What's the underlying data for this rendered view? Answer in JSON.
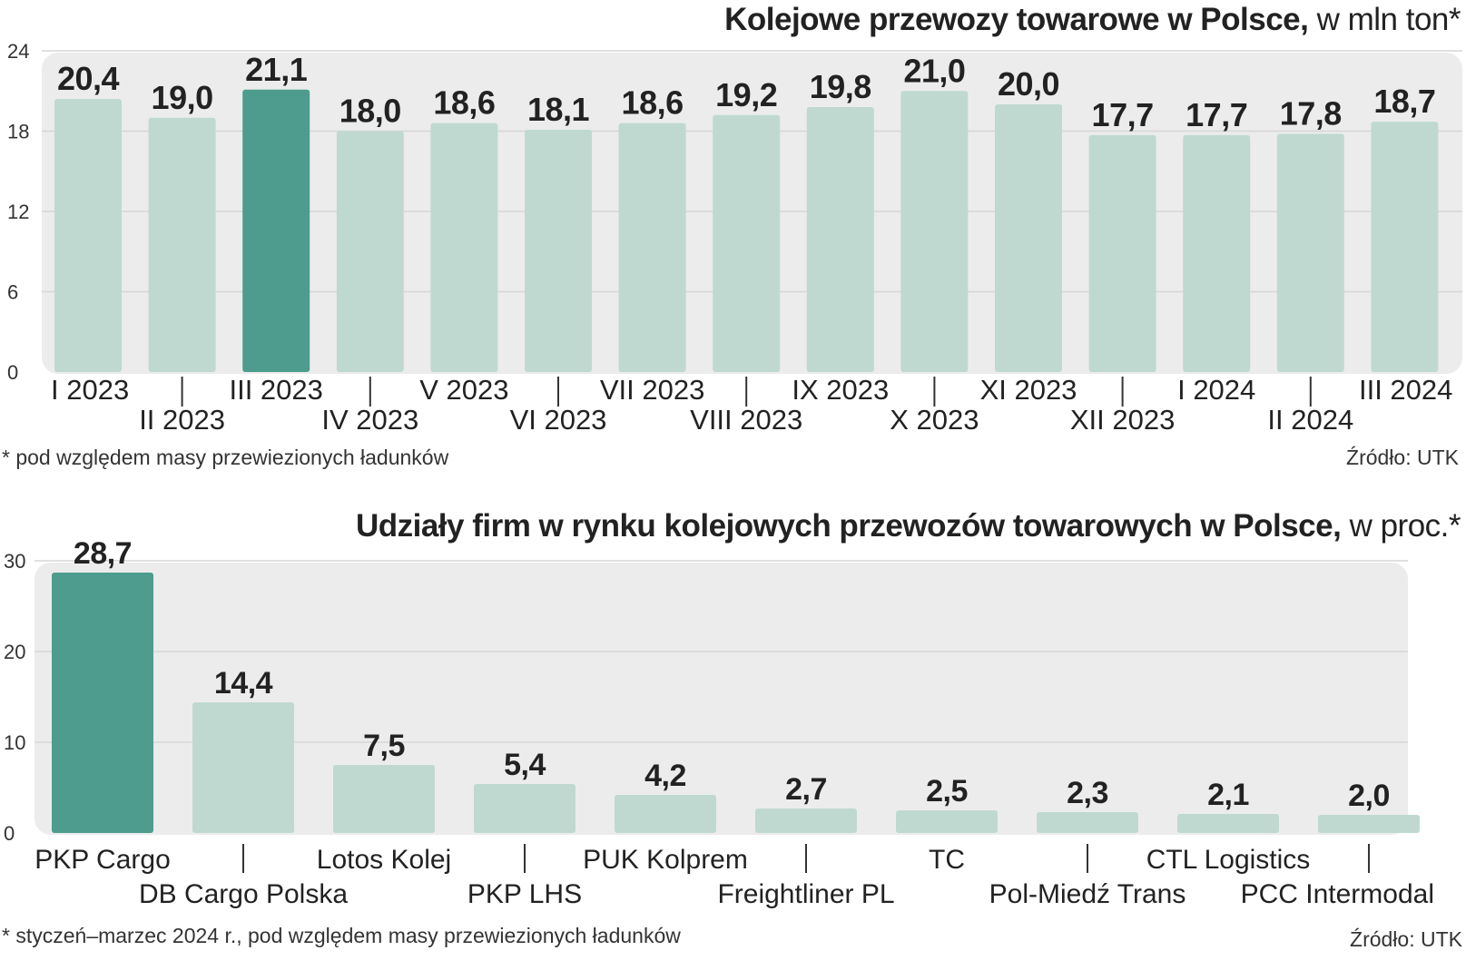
{
  "charts": [
    {
      "title_bold": "Kolejowe przewozy towarowe w Polsce,",
      "title_unit": " w mln ton*",
      "footnote": "* pod względem masy przewiezionych ładunków",
      "source": "Źródło: UTK"
    },
    {
      "title_bold": "Udziały firm w rynku kolejowych przewozów towarowych w Polsce,",
      "title_unit": " w proc.*",
      "footnote": "* styczeń–marzec 2024 r., pod względem masy przewiezionych ładunków",
      "source": "Źródło: UTK"
    }
  ],
  "colors": {
    "bar": "#bfd9d1",
    "highlight": "#4e9c8d",
    "panel": "#ececec",
    "grid": "#d6d6d6",
    "text": "#222222"
  },
  "chart_data": [
    {
      "type": "bar",
      "title": "Kolejowe przewozy towarowe w Polsce, w mln ton*",
      "categories": [
        "I 2023",
        "II 2023",
        "III 2023",
        "IV 2023",
        "V 2023",
        "VI 2023",
        "VII 2023",
        "VIII 2023",
        "IX 2023",
        "X 2023",
        "XI 2023",
        "XII 2023",
        "I 2024",
        "II 2024",
        "III 2024"
      ],
      "values": [
        20.4,
        19.0,
        21.1,
        18.0,
        18.6,
        18.1,
        18.6,
        19.2,
        19.8,
        21.0,
        20.0,
        17.7,
        17.7,
        17.8,
        18.7
      ],
      "value_labels": [
        "20,4",
        "19,0",
        "21,1",
        "18,0",
        "18,6",
        "18,1",
        "18,6",
        "19,2",
        "19,8",
        "21,0",
        "20,0",
        "17,7",
        "17,7",
        "17,8",
        "18,7"
      ],
      "highlight_index": 2,
      "yticks": [
        0,
        6,
        12,
        18,
        24
      ],
      "ylim": [
        0,
        24
      ],
      "grid": true
    },
    {
      "type": "bar",
      "title": "Udziały firm w rynku kolejowych przewozów towarowych w Polsce, w proc.*",
      "categories": [
        "PKP Cargo",
        "DB Cargo Polska",
        "Lotos Kolej",
        "PKP LHS",
        "PUK Kolprem",
        "Freightliner PL",
        "TC",
        "Pol-Miedź Trans",
        "CTL Logistics",
        "PCC Intermodal"
      ],
      "values": [
        28.7,
        14.4,
        7.5,
        5.4,
        4.2,
        2.7,
        2.5,
        2.3,
        2.1,
        2.0
      ],
      "value_labels": [
        "28,7",
        "14,4",
        "7,5",
        "5,4",
        "4,2",
        "2,7",
        "2,5",
        "2,3",
        "2,1",
        "2,0"
      ],
      "highlight_index": 0,
      "yticks": [
        0,
        10,
        20,
        30
      ],
      "ylim": [
        0,
        30
      ],
      "grid": true
    }
  ]
}
